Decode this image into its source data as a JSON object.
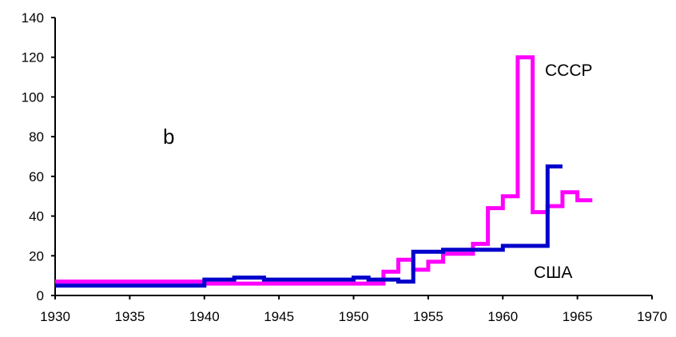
{
  "chart_data": {
    "type": "line",
    "step": true,
    "xlim": [
      1930,
      1970
    ],
    "ylim": [
      0,
      140
    ],
    "x_ticks": [
      1930,
      1935,
      1940,
      1945,
      1950,
      1955,
      1960,
      1965,
      1970
    ],
    "y_ticks": [
      0,
      20,
      40,
      60,
      80,
      100,
      120,
      140
    ],
    "grid": false,
    "panel_label": "b",
    "series": [
      {
        "name": "СССР",
        "color": "#ff00ff",
        "points": [
          [
            1930,
            7
          ],
          [
            1940,
            7
          ],
          [
            1940,
            6
          ],
          [
            1952,
            6
          ],
          [
            1952,
            12
          ],
          [
            1953,
            12
          ],
          [
            1953,
            18
          ],
          [
            1954,
            18
          ],
          [
            1954,
            13
          ],
          [
            1955,
            13
          ],
          [
            1955,
            17
          ],
          [
            1956,
            17
          ],
          [
            1956,
            21
          ],
          [
            1958,
            21
          ],
          [
            1958,
            26
          ],
          [
            1959,
            26
          ],
          [
            1959,
            44
          ],
          [
            1960,
            44
          ],
          [
            1960,
            50
          ],
          [
            1961,
            50
          ],
          [
            1961,
            120
          ],
          [
            1962,
            120
          ],
          [
            1962,
            42
          ],
          [
            1963,
            42
          ],
          [
            1963,
            45
          ],
          [
            1964,
            45
          ],
          [
            1964,
            52
          ],
          [
            1965,
            52
          ],
          [
            1965,
            48
          ],
          [
            1966,
            48
          ]
        ]
      },
      {
        "name": "США",
        "color": "#0000cc",
        "points": [
          [
            1930,
            5
          ],
          [
            1940,
            5
          ],
          [
            1940,
            8
          ],
          [
            1942,
            8
          ],
          [
            1942,
            9
          ],
          [
            1944,
            9
          ],
          [
            1944,
            8
          ],
          [
            1950,
            8
          ],
          [
            1950,
            9
          ],
          [
            1951,
            9
          ],
          [
            1951,
            8
          ],
          [
            1953,
            8
          ],
          [
            1953,
            7
          ],
          [
            1954,
            7
          ],
          [
            1954,
            22
          ],
          [
            1956,
            22
          ],
          [
            1956,
            23
          ],
          [
            1960,
            23
          ],
          [
            1960,
            25
          ],
          [
            1963,
            25
          ],
          [
            1963,
            65
          ],
          [
            1964,
            65
          ]
        ]
      }
    ]
  }
}
